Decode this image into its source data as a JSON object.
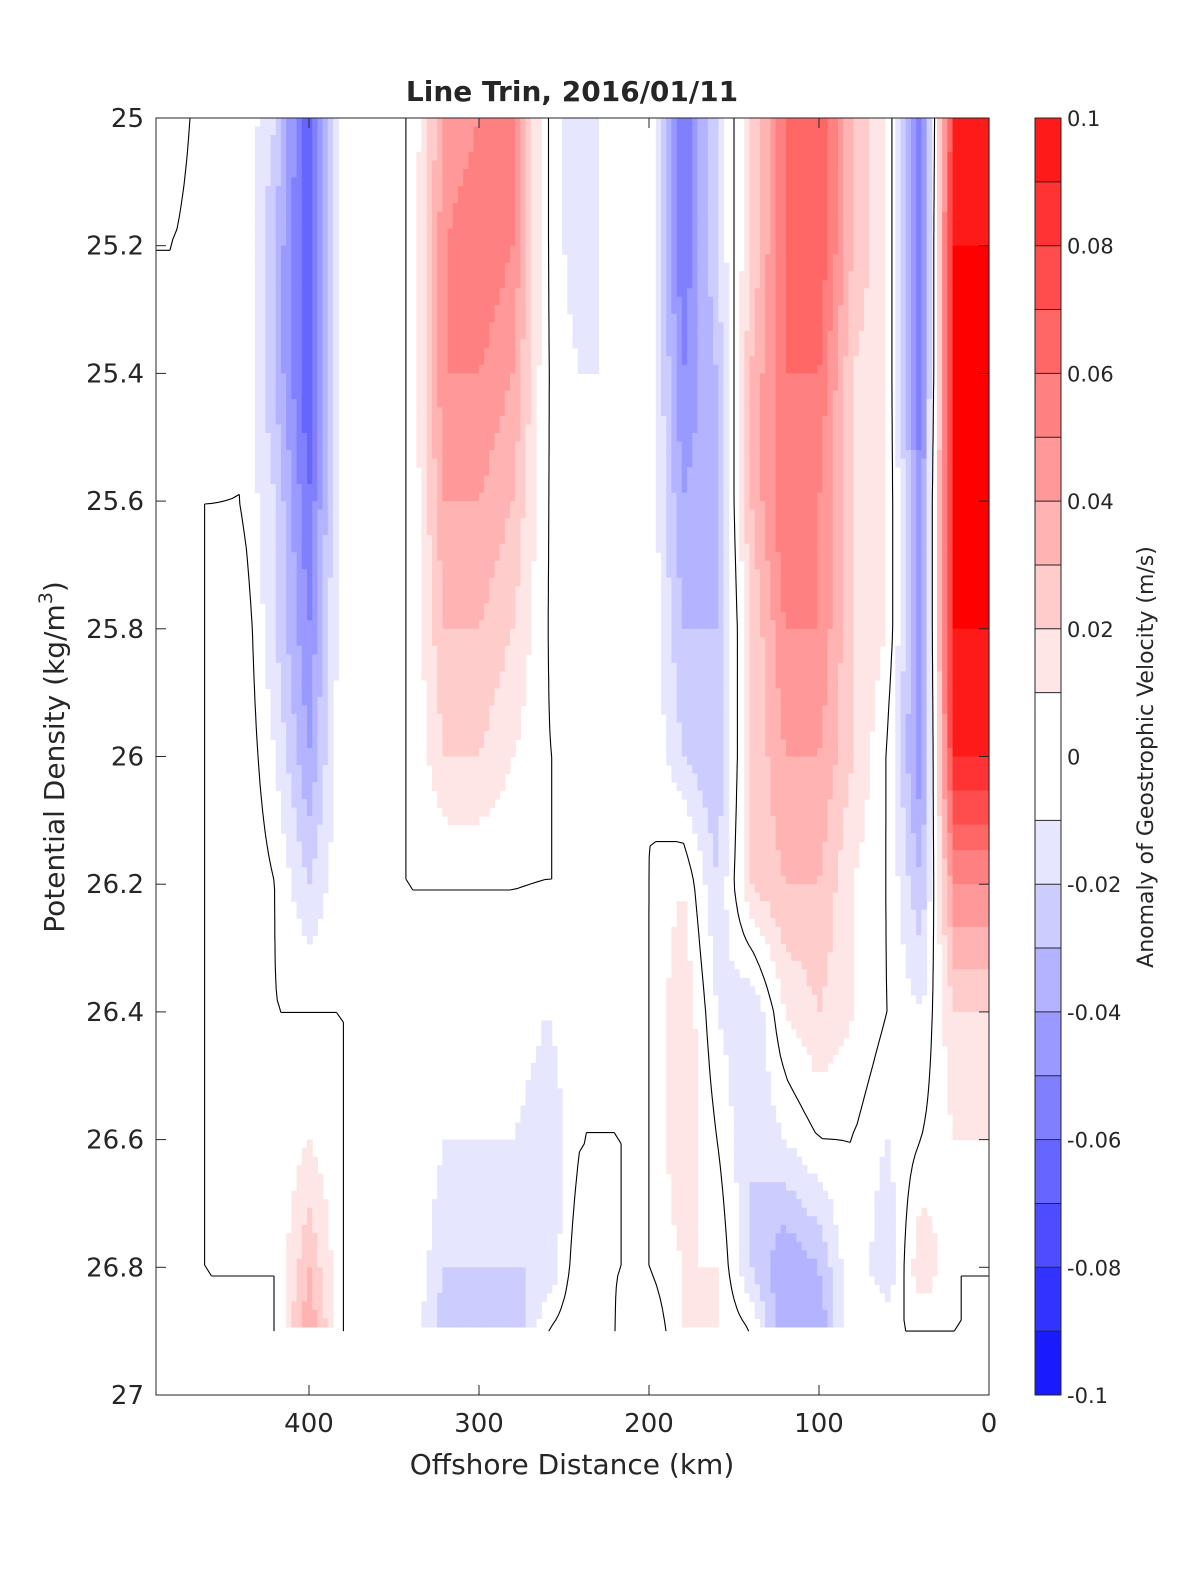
{
  "chart_data": {
    "type": "heatmap",
    "title": "Line Trin, 2016/01/11",
    "xlabel": "Offshore Distance (km)",
    "ylabel_main": "Potential Density (kg/m",
    "ylabel_sup": "3",
    "ylabel_close": ")",
    "xlim": [
      490,
      0
    ],
    "ylim": [
      25,
      27
    ],
    "x_reversed": true,
    "y_reversed": true,
    "xticks": [
      400,
      300,
      200,
      100,
      0
    ],
    "xtick_labels": [
      "400",
      "300",
      "200",
      "100",
      "0"
    ],
    "yticks": [
      25,
      25.2,
      25.4,
      25.6,
      25.8,
      26,
      26.2,
      26.4,
      26.6,
      26.8,
      27
    ],
    "ytick_labels": [
      "25",
      "25.2",
      "25.4",
      "25.6",
      "25.8",
      "26",
      "26.2",
      "26.4",
      "26.6",
      "26.8",
      "27"
    ],
    "colorbar": {
      "label": "Anomaly of Geostrophic Velocity (m/s)",
      "limits": [
        -0.1,
        0.1
      ],
      "levels": [
        -0.1,
        -0.09,
        -0.08,
        -0.07,
        -0.06,
        -0.05,
        -0.04,
        -0.03,
        -0.02,
        -0.01,
        0.01,
        0.02,
        0.03,
        0.04,
        0.05,
        0.06,
        0.07,
        0.08,
        0.09,
        0.1
      ],
      "ticks": [
        0.1,
        0.08,
        0.06,
        0.04,
        0.02,
        0,
        -0.02,
        -0.04,
        -0.06,
        -0.08,
        -0.1
      ],
      "tick_labels": [
        "0.1",
        "0.08",
        "0.06",
        "0.04",
        "0.02",
        "0",
        "-0.02",
        "-0.04",
        "-0.06",
        "-0.08",
        "-0.1"
      ],
      "colors": [
        "#0000ff",
        "#1a1aff",
        "#3333ff",
        "#4d4dff",
        "#6666ff",
        "#8080ff",
        "#9999ff",
        "#b3b3ff",
        "#ccccff",
        "#e6e6ff",
        "#ffffff",
        "#ffe6e6",
        "#ffcccc",
        "#ffb3b3",
        "#ff9999",
        "#ff8080",
        "#ff6666",
        "#ff4d4d",
        "#ff3333",
        "#ff1a1a",
        "#ff0000"
      ]
    },
    "x_columns": [
      480,
      460,
      440,
      420,
      400,
      380,
      360,
      340,
      320,
      300,
      280,
      260,
      240,
      220,
      200,
      180,
      160,
      140,
      120,
      100,
      80,
      60,
      40,
      20
    ],
    "y_rows": [
      25.0,
      25.2,
      25.4,
      25.6,
      25.8,
      26.0,
      26.2,
      26.4,
      26.6,
      26.8,
      26.9
    ],
    "z_values": [
      [
        0.01,
        -0.01,
        0.0,
        -0.02,
        -0.07,
        0.0,
        0.0,
        0.0,
        0.04,
        0.05,
        0.05,
        0.0,
        -0.02,
        0.0,
        0.0,
        -0.06,
        -0.02,
        0.02,
        0.06,
        0.07,
        0.03,
        0.01,
        -0.06,
        0.09
      ],
      [
        0.0,
        -0.01,
        0.0,
        -0.03,
        -0.07,
        0.0,
        0.0,
        0.0,
        0.05,
        0.06,
        0.05,
        0.0,
        -0.02,
        0.0,
        0.0,
        -0.06,
        -0.02,
        0.02,
        0.06,
        0.07,
        0.03,
        0.01,
        -0.06,
        0.1
      ],
      [
        0.0,
        -0.01,
        0.0,
        -0.03,
        -0.07,
        0.0,
        0.0,
        0.0,
        0.05,
        0.05,
        0.04,
        0.0,
        -0.01,
        -0.01,
        0.0,
        -0.05,
        -0.03,
        0.03,
        0.06,
        0.06,
        0.02,
        0.01,
        -0.06,
        0.1
      ],
      [
        0.0,
        0.0,
        0.0,
        -0.02,
        -0.06,
        0.0,
        0.0,
        0.0,
        0.04,
        0.04,
        0.03,
        0.0,
        -0.01,
        -0.01,
        0.0,
        -0.04,
        -0.03,
        0.03,
        0.06,
        0.05,
        0.02,
        0.01,
        -0.05,
        0.1
      ],
      [
        0.0,
        0.0,
        0.01,
        -0.02,
        -0.05,
        0.0,
        0.0,
        0.0,
        0.03,
        0.03,
        0.02,
        0.0,
        -0.01,
        -0.01,
        0.0,
        -0.03,
        -0.03,
        0.02,
        0.05,
        0.05,
        0.02,
        0.01,
        -0.05,
        0.1
      ],
      [
        0.0,
        0.0,
        0.01,
        -0.01,
        -0.04,
        0.0,
        0.0,
        0.0,
        0.02,
        0.02,
        0.01,
        0.0,
        0.0,
        -0.01,
        0.0,
        -0.02,
        -0.03,
        0.02,
        0.04,
        0.04,
        0.02,
        0.0,
        -0.05,
        0.09
      ],
      [
        0.0,
        0.0,
        0.01,
        0.0,
        -0.02,
        0.0,
        0.0,
        0.0,
        0.0,
        0.0,
        0.0,
        0.0,
        0.0,
        -0.01,
        0.0,
        0.01,
        -0.02,
        0.02,
        0.03,
        0.03,
        0.01,
        0.0,
        -0.03,
        0.05
      ],
      [
        0.0,
        0.0,
        0.01,
        0.0,
        0.0,
        0.0,
        0.0,
        0.0,
        0.0,
        0.0,
        0.0,
        -0.01,
        0.0,
        0.0,
        0.0,
        0.02,
        -0.01,
        -0.02,
        0.01,
        0.02,
        0.01,
        0.0,
        -0.01,
        0.02
      ],
      [
        0.0,
        0.0,
        0.01,
        0.0,
        0.01,
        0.0,
        0.0,
        0.0,
        -0.01,
        -0.01,
        -0.01,
        -0.02,
        0.0,
        0.0,
        0.0,
        0.02,
        0.0,
        -0.02,
        -0.01,
        0.0,
        0.0,
        -0.01,
        0.0,
        0.01
      ],
      [
        0.0,
        0.0,
        0.0,
        0.0,
        0.03,
        0.0,
        0.0,
        0.0,
        -0.02,
        -0.02,
        -0.02,
        -0.02,
        0.01,
        0.0,
        0.0,
        0.01,
        0.01,
        -0.02,
        -0.04,
        -0.03,
        0.0,
        -0.02,
        0.02,
        0.0
      ],
      [
        0.0,
        0.0,
        0.0,
        0.0,
        0.04,
        0.0,
        0.0,
        0.0,
        -0.03,
        -0.02,
        -0.03,
        0.0,
        0.01,
        0.0,
        -0.01,
        0.01,
        0.01,
        0.0,
        -0.04,
        -0.04,
        0.0,
        0.0,
        0.0,
        0.0
      ]
    ]
  }
}
